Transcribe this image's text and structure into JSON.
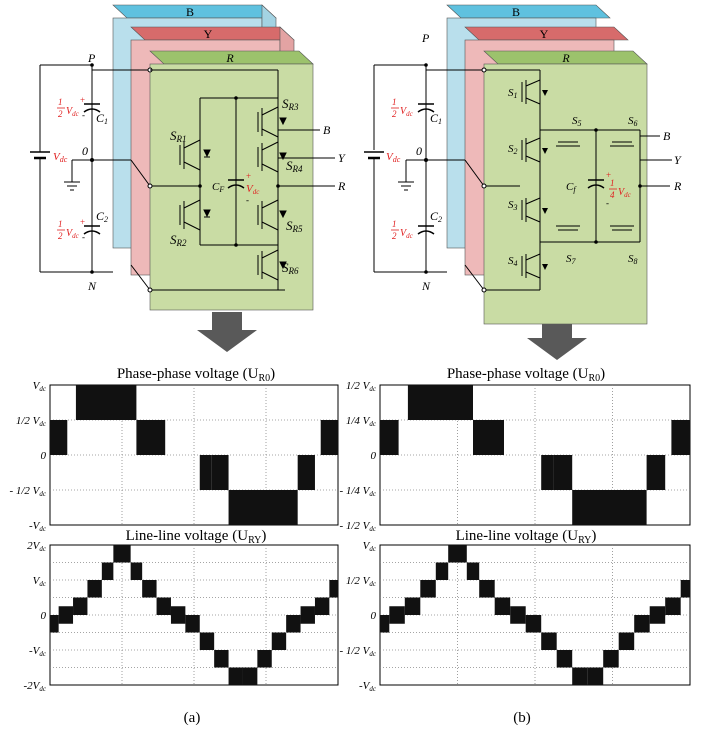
{
  "layers": {
    "b": "B",
    "y": "Y",
    "r": "R"
  },
  "colors": {
    "b_fill": "#b9dfec",
    "b_top": "#5fc1df",
    "y_fill": "#eeb9b9",
    "y_top": "#d76b6b",
    "r_fill": "#c9dca4",
    "r_top": "#9cc26c",
    "accent": "#e02020",
    "arrow": "#595959"
  },
  "circuit_common": {
    "p": "P",
    "n": "N",
    "o": "0",
    "vdc": "V",
    "vdc_sub": "dc",
    "c1": "C",
    "c1_sub": "1",
    "c2": "C",
    "c2_sub": "2",
    "half": "1",
    "half_den": "2",
    "plus": "+",
    "minus": "-",
    "out_b": "B",
    "out_y": "Y",
    "out_r": "R"
  },
  "circuit_a": {
    "switches": [
      {
        "s": "S",
        "sub": "R1"
      },
      {
        "s": "S",
        "sub": "R2"
      },
      {
        "s": "S",
        "sub": "R3"
      },
      {
        "s": "S",
        "sub": "R4"
      },
      {
        "s": "S",
        "sub": "R5"
      },
      {
        "s": "S",
        "sub": "R6"
      }
    ],
    "cap": "C",
    "cap_sub": "F",
    "cap_v": "V",
    "cap_v_sub": "dc"
  },
  "circuit_b": {
    "switches": [
      {
        "s": "S",
        "sub": "1"
      },
      {
        "s": "S",
        "sub": "2"
      },
      {
        "s": "S",
        "sub": "3"
      },
      {
        "s": "S",
        "sub": "4"
      },
      {
        "s": "S",
        "sub": "5"
      },
      {
        "s": "S",
        "sub": "6"
      },
      {
        "s": "S",
        "sub": "7"
      },
      {
        "s": "S",
        "sub": "8"
      }
    ],
    "cap": "C",
    "cap_sub": "f",
    "cap_num": "1",
    "cap_den": "4",
    "cap_v": "V",
    "cap_v_sub": "dc"
  },
  "plots": {
    "phase_title": "Phase-phase voltage (U",
    "phase_sub": "R0",
    "line_title": "Line-line voltage (U",
    "line_sub": "RY",
    "close": ")",
    "a_phase_ticks": [
      "V",
      "1/2 V",
      "0",
      "- 1/2 V",
      "-V"
    ],
    "a_line_ticks": [
      "2V",
      "V",
      "0",
      "-V",
      "-2V"
    ],
    "b_phase_ticks": [
      "1/2 V",
      "1/4 V",
      "0",
      "- 1/4 V",
      "- 1/2 V"
    ],
    "b_line_ticks": [
      "V",
      "1/2 V",
      "0",
      "- 1/2 V",
      "-V"
    ],
    "dc": "dc"
  },
  "captions": {
    "a": "(a)",
    "b": "(b)"
  }
}
